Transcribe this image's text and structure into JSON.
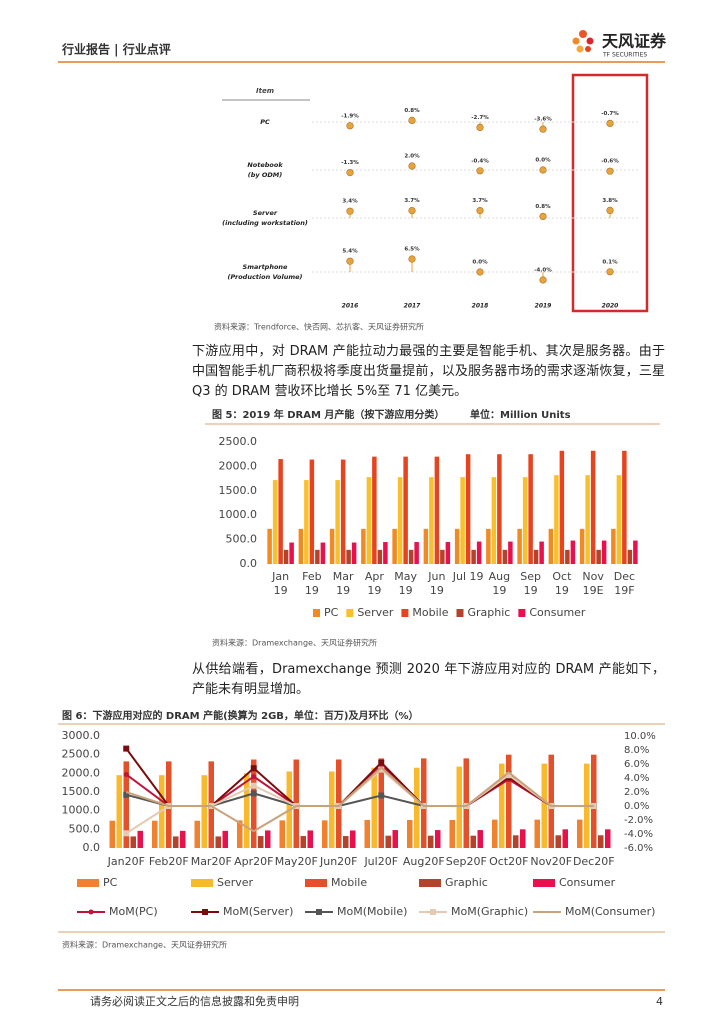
{
  "header": {
    "title": "行业报告 | 行业点评",
    "logo": "天风证券",
    "logo_en": "TF SECURITIES"
  },
  "paragraphs": [
    "下游应用中，对 DRAM 产能拉动力最强的主要是智能手机、其次是服务器。由于中国智能手机厂商积极将季度出货量提前，以及服务器市场的需求逐渐恢复，三星 Q3 的 DRAM 营收环比增长 5%至 71 亿美元。",
    "从供给端看，Dramexchange 预测 2020 年下游应用对应的 DRAM 产能如下，产能未有明显增加。"
  ],
  "chart_data": [
    {
      "type": "dot",
      "item_header": "Item",
      "source": "资料来源：Trendforce、快否网、芯扒客、天风证券研究所",
      "categories": [
        [
          "PC"
        ],
        [
          "Notebook",
          "(by ODM)"
        ],
        [
          "Server",
          "(including workstation)"
        ],
        [
          "Smartphone",
          "(Production Volume)"
        ]
      ],
      "x": [
        "2016",
        "2017",
        "2018",
        "2019",
        "2020"
      ],
      "values": [
        [
          -1.9,
          0.8,
          -2.7,
          -3.6,
          -0.7
        ],
        [
          -1.3,
          2.0,
          -0.4,
          0.0,
          -0.6
        ],
        [
          3.4,
          3.7,
          3.7,
          0.8,
          3.8
        ],
        [
          5.4,
          6.5,
          0.0,
          -4.0,
          0.1
        ]
      ],
      "value_labels": [
        [
          "-1.9%",
          "0.8%",
          "-2.7%",
          "-3.6%",
          "-0.7%"
        ],
        [
          "-1.3%",
          "2.0%",
          "-0.4%",
          "0.0%",
          "-0.6%"
        ],
        [
          "3.4%",
          "3.7%",
          "3.7%",
          "0.8%",
          "3.8%"
        ],
        [
          "5.4%",
          "6.5%",
          "0.0%",
          "-4.0%",
          "0.1%"
        ]
      ],
      "color": "#e8a33a",
      "highlight_color": "#d42a2a"
    },
    {
      "type": "bar",
      "title": "图 5：2019 年 DRAM 月产能（按下游应用分类）",
      "unit": "单位：Million Units",
      "source": "资料来源：Dramexchange、天风证券研究所",
      "categories": [
        [
          "Jan",
          "19"
        ],
        [
          "Feb",
          "19"
        ],
        [
          "Mar",
          "19"
        ],
        [
          "Apr",
          "19"
        ],
        [
          "May",
          "19"
        ],
        [
          "Jun",
          "19"
        ],
        [
          "Jul 19"
        ],
        [
          "Aug",
          "19"
        ],
        [
          "Sep",
          "19"
        ],
        [
          "Oct",
          "19"
        ],
        [
          "Nov",
          "19E"
        ],
        [
          "Dec",
          "19F"
        ]
      ],
      "ylim": [
        0,
        2500
      ],
      "yticks": [
        {
          "value": 0,
          "label": "0.0"
        },
        {
          "value": 500,
          "label": "500.0"
        },
        {
          "value": 1000,
          "label": "1000.0"
        },
        {
          "value": 1500,
          "label": "1500.0"
        },
        {
          "value": 2000,
          "label": "2000.0"
        },
        {
          "value": 2500,
          "label": "2500.0"
        }
      ],
      "legend": "bottom",
      "series": [
        {
          "name": "PC",
          "color": "#f08a24",
          "values": [
            720,
            720,
            720,
            720,
            720,
            720,
            720,
            720,
            720,
            720,
            720,
            720
          ]
        },
        {
          "name": "Server",
          "color": "#f9c02e",
          "values": [
            1720,
            1720,
            1720,
            1780,
            1780,
            1780,
            1780,
            1780,
            1780,
            1820,
            1820,
            1820
          ]
        },
        {
          "name": "Mobile",
          "color": "#e8431f",
          "values": [
            2150,
            2140,
            2140,
            2200,
            2200,
            2200,
            2250,
            2250,
            2250,
            2320,
            2320,
            2320
          ]
        },
        {
          "name": "Graphic",
          "color": "#b5422a",
          "values": [
            290,
            290,
            290,
            290,
            290,
            290,
            290,
            290,
            290,
            290,
            290,
            290
          ]
        },
        {
          "name": "Consumer",
          "color": "#e8104d",
          "values": [
            440,
            440,
            440,
            450,
            450,
            450,
            460,
            460,
            460,
            480,
            480,
            480
          ]
        }
      ]
    },
    {
      "type": "combo",
      "title": "图 6：下游应用对应的 DRAM 产能(换算为 2GB，单位：百万)及月环比（%）",
      "source": "资料来源：Dramexchange、天风证券研究所",
      "categories": [
        "Jan20F",
        "Feb20F",
        "Mar20F",
        "Apr20F",
        "May20F",
        "Jun20F",
        "Jul20F",
        "Aug20F",
        "Sep20F",
        "Oct20F",
        "Nov20F",
        "Dec20F"
      ],
      "ylim": [
        0,
        3000
      ],
      "yticks": [
        {
          "value": 0,
          "label": "0.0"
        },
        {
          "value": 500,
          "label": "500.0"
        },
        {
          "value": 1000,
          "label": "1000.0"
        },
        {
          "value": 1500,
          "label": "1500.0"
        },
        {
          "value": 2000,
          "label": "2000.0"
        },
        {
          "value": 2500,
          "label": "2500.0"
        },
        {
          "value": 3000,
          "label": "3000.0"
        }
      ],
      "y2lim": [
        -6,
        10
      ],
      "y2ticks": [
        {
          "value": -6,
          "label": "-6.0%"
        },
        {
          "value": -4,
          "label": "-4.0%"
        },
        {
          "value": -2,
          "label": "-2.0%"
        },
        {
          "value": 0,
          "label": "0.0%"
        },
        {
          "value": 2,
          "label": "2.0%"
        },
        {
          "value": 4,
          "label": "4.0%"
        },
        {
          "value": 6,
          "label": "6.0%"
        },
        {
          "value": 8,
          "label": "8.0%"
        },
        {
          "value": 10,
          "label": "10.0%"
        }
      ],
      "legend": "bottom",
      "series": [
        {
          "name": "PC",
          "color": "#f0812e",
          "values": [
            730,
            730,
            730,
            740,
            740,
            740,
            750,
            750,
            750,
            760,
            760,
            760
          ]
        },
        {
          "name": "Server",
          "color": "#f9b92d",
          "values": [
            1950,
            1950,
            1950,
            2000,
            2050,
            2050,
            2150,
            2150,
            2180,
            2260,
            2260,
            2260
          ]
        },
        {
          "name": "Mobile",
          "color": "#e4502a",
          "values": [
            2320,
            2320,
            2320,
            2370,
            2370,
            2370,
            2400,
            2400,
            2400,
            2500,
            2500,
            2500
          ]
        },
        {
          "name": "Graphic",
          "color": "#b5422a",
          "values": [
            310,
            310,
            310,
            320,
            320,
            320,
            330,
            330,
            330,
            340,
            340,
            340
          ]
        },
        {
          "name": "Consumer",
          "color": "#e8104d",
          "values": [
            460,
            460,
            460,
            470,
            470,
            470,
            480,
            480,
            480,
            500,
            500,
            500
          ]
        },
        {
          "name": "MoM(PC)",
          "color": "#c0143c",
          "kind": "line",
          "axis": "y2",
          "marker": "circle",
          "values": [
            4.5,
            0,
            0,
            4.2,
            0,
            0,
            5.8,
            0,
            0,
            3.8,
            0,
            0
          ]
        },
        {
          "name": "MoM(Server)",
          "color": "#7b0c0c",
          "kind": "line",
          "axis": "y2",
          "marker": "square",
          "values": [
            8.2,
            0,
            0,
            5.4,
            0,
            0,
            6.2,
            0,
            0,
            4.1,
            0,
            0
          ]
        },
        {
          "name": "MoM(Mobile)",
          "color": "#555555",
          "kind": "line",
          "axis": "y2",
          "marker": "square",
          "values": [
            1.6,
            0,
            0,
            1.8,
            0,
            0,
            1.5,
            0,
            0,
            4.5,
            0,
            0
          ]
        },
        {
          "name": "MoM(Graphic)",
          "color": "#e5c9b0",
          "kind": "line",
          "axis": "y2",
          "marker": "square",
          "values": [
            -3.9,
            0,
            0,
            2.9,
            0,
            0,
            5.2,
            0,
            0,
            4.4,
            0,
            0
          ]
        },
        {
          "name": "MoM(Consumer)",
          "color": "#c8a27a",
          "kind": "line",
          "axis": "y2",
          "marker": "none",
          "values": [
            2.0,
            0,
            0,
            -3.6,
            0,
            0,
            5.5,
            0,
            0,
            4.8,
            0,
            0
          ]
        }
      ]
    }
  ],
  "footer": {
    "disclaimer": "请务必阅读正文之后的信息披露和免责申明",
    "page": "4"
  }
}
